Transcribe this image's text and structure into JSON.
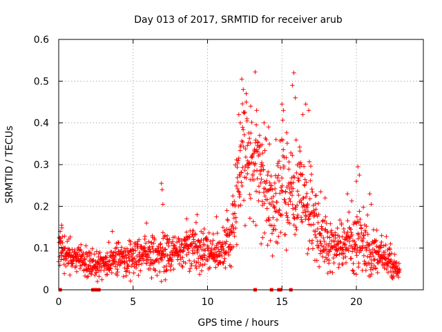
{
  "chart_data": {
    "type": "scatter",
    "title": "Day 013 of 2017, SRMTID for receiver arub",
    "xlabel": "GPS time / hours",
    "ylabel": "SRMTID / TECUs",
    "xlim": [
      0,
      24.5
    ],
    "ylim": [
      0,
      0.6
    ],
    "x_ticks": [
      0,
      5,
      10,
      15,
      20
    ],
    "x_tick_labels": [
      "0",
      "5",
      "10",
      "15",
      "20"
    ],
    "y_ticks": [
      0,
      0.1,
      0.2,
      0.3,
      0.4,
      0.5,
      0.6
    ],
    "y_tick_labels": [
      "0",
      "0.1",
      "0.2",
      "0.3",
      "0.4",
      "0.5",
      "0.6"
    ],
    "grid": true,
    "marker": "+",
    "marker_color": "#ff0000",
    "series_envelope": [
      {
        "x": 0.0,
        "center": 0.095,
        "spread": 0.035
      },
      {
        "x": 0.5,
        "center": 0.085,
        "spread": 0.03
      },
      {
        "x": 1.0,
        "center": 0.08,
        "spread": 0.025
      },
      {
        "x": 2.0,
        "center": 0.065,
        "spread": 0.022
      },
      {
        "x": 2.5,
        "center": 0.058,
        "spread": 0.02
      },
      {
        "x": 3.0,
        "center": 0.06,
        "spread": 0.022
      },
      {
        "x": 4.0,
        "center": 0.075,
        "spread": 0.025
      },
      {
        "x": 5.0,
        "center": 0.08,
        "spread": 0.028
      },
      {
        "x": 6.0,
        "center": 0.085,
        "spread": 0.03
      },
      {
        "x": 7.0,
        "center": 0.085,
        "spread": 0.035
      },
      {
        "x": 8.0,
        "center": 0.09,
        "spread": 0.03
      },
      {
        "x": 9.0,
        "center": 0.1,
        "spread": 0.035
      },
      {
        "x": 10.0,
        "center": 0.1,
        "spread": 0.035
      },
      {
        "x": 10.8,
        "center": 0.08,
        "spread": 0.03
      },
      {
        "x": 11.5,
        "center": 0.11,
        "spread": 0.04
      },
      {
        "x": 12.0,
        "center": 0.22,
        "spread": 0.07
      },
      {
        "x": 12.5,
        "center": 0.33,
        "spread": 0.08
      },
      {
        "x": 13.0,
        "center": 0.31,
        "spread": 0.08
      },
      {
        "x": 13.5,
        "center": 0.28,
        "spread": 0.08
      },
      {
        "x": 14.0,
        "center": 0.25,
        "spread": 0.08
      },
      {
        "x": 14.5,
        "center": 0.2,
        "spread": 0.07
      },
      {
        "x": 15.0,
        "center": 0.28,
        "spread": 0.08
      },
      {
        "x": 15.5,
        "center": 0.24,
        "spread": 0.08
      },
      {
        "x": 16.0,
        "center": 0.22,
        "spread": 0.08
      },
      {
        "x": 16.5,
        "center": 0.24,
        "spread": 0.08
      },
      {
        "x": 17.0,
        "center": 0.17,
        "spread": 0.06
      },
      {
        "x": 17.5,
        "center": 0.14,
        "spread": 0.05
      },
      {
        "x": 18.0,
        "center": 0.11,
        "spread": 0.04
      },
      {
        "x": 19.0,
        "center": 0.1,
        "spread": 0.035
      },
      {
        "x": 19.5,
        "center": 0.13,
        "spread": 0.05
      },
      {
        "x": 20.0,
        "center": 0.12,
        "spread": 0.05
      },
      {
        "x": 20.5,
        "center": 0.12,
        "spread": 0.05
      },
      {
        "x": 21.0,
        "center": 0.09,
        "spread": 0.035
      },
      {
        "x": 21.5,
        "center": 0.08,
        "spread": 0.03
      },
      {
        "x": 22.0,
        "center": 0.075,
        "spread": 0.03
      },
      {
        "x": 22.5,
        "center": 0.06,
        "spread": 0.025
      },
      {
        "x": 22.9,
        "center": 0.04,
        "spread": 0.015
      }
    ],
    "outliers": [
      {
        "x": 12.3,
        "y": 0.505
      },
      {
        "x": 12.4,
        "y": 0.48
      },
      {
        "x": 12.6,
        "y": 0.45
      },
      {
        "x": 13.2,
        "y": 0.522
      },
      {
        "x": 12.9,
        "y": 0.44
      },
      {
        "x": 13.3,
        "y": 0.43
      },
      {
        "x": 13.8,
        "y": 0.4
      },
      {
        "x": 14.1,
        "y": 0.39
      },
      {
        "x": 15.0,
        "y": 0.445
      },
      {
        "x": 15.1,
        "y": 0.43
      },
      {
        "x": 15.8,
        "y": 0.52
      },
      {
        "x": 15.7,
        "y": 0.49
      },
      {
        "x": 15.9,
        "y": 0.46
      },
      {
        "x": 16.6,
        "y": 0.445
      },
      {
        "x": 16.8,
        "y": 0.43
      },
      {
        "x": 16.4,
        "y": 0.42
      },
      {
        "x": 12.1,
        "y": 0.42
      },
      {
        "x": 12.2,
        "y": 0.4
      },
      {
        "x": 13.5,
        "y": 0.37
      },
      {
        "x": 14.6,
        "y": 0.36
      },
      {
        "x": 6.9,
        "y": 0.255
      },
      {
        "x": 6.95,
        "y": 0.24
      },
      {
        "x": 7.0,
        "y": 0.205
      },
      {
        "x": 20.1,
        "y": 0.295
      },
      {
        "x": 20.2,
        "y": 0.275
      },
      {
        "x": 20.0,
        "y": 0.26
      },
      {
        "x": 19.4,
        "y": 0.23
      },
      {
        "x": 20.9,
        "y": 0.23
      },
      {
        "x": 21.0,
        "y": 0.205
      },
      {
        "x": 17.6,
        "y": 0.235
      },
      {
        "x": 17.9,
        "y": 0.22
      },
      {
        "x": 16.3,
        "y": 0.3
      },
      {
        "x": 14.2,
        "y": 0.155
      },
      {
        "x": 13.7,
        "y": 0.125
      },
      {
        "x": 13.6,
        "y": 0.11
      },
      {
        "x": 15.3,
        "y": 0.095
      },
      {
        "x": 6.9,
        "y": 0.02
      },
      {
        "x": 2.6,
        "y": 0.02
      },
      {
        "x": 1.9,
        "y": 0.03
      },
      {
        "x": 0.2,
        "y": 0.155
      },
      {
        "x": 0.1,
        "y": 0.14
      },
      {
        "x": 3.6,
        "y": 0.14
      },
      {
        "x": 5.9,
        "y": 0.16
      },
      {
        "x": 8.6,
        "y": 0.17
      },
      {
        "x": 9.3,
        "y": 0.18
      },
      {
        "x": 10.6,
        "y": 0.175
      },
      {
        "x": 11.3,
        "y": 0.19
      },
      {
        "x": 11.7,
        "y": 0.225
      },
      {
        "x": 21.7,
        "y": 0.13
      },
      {
        "x": 22.3,
        "y": 0.11
      },
      {
        "x": 22.9,
        "y": 0.05
      }
    ],
    "zero_markers_x": [
      0.1,
      2.3,
      2.5,
      2.7,
      13.2,
      14.3,
      14.8,
      14.9,
      15.6
    ]
  }
}
